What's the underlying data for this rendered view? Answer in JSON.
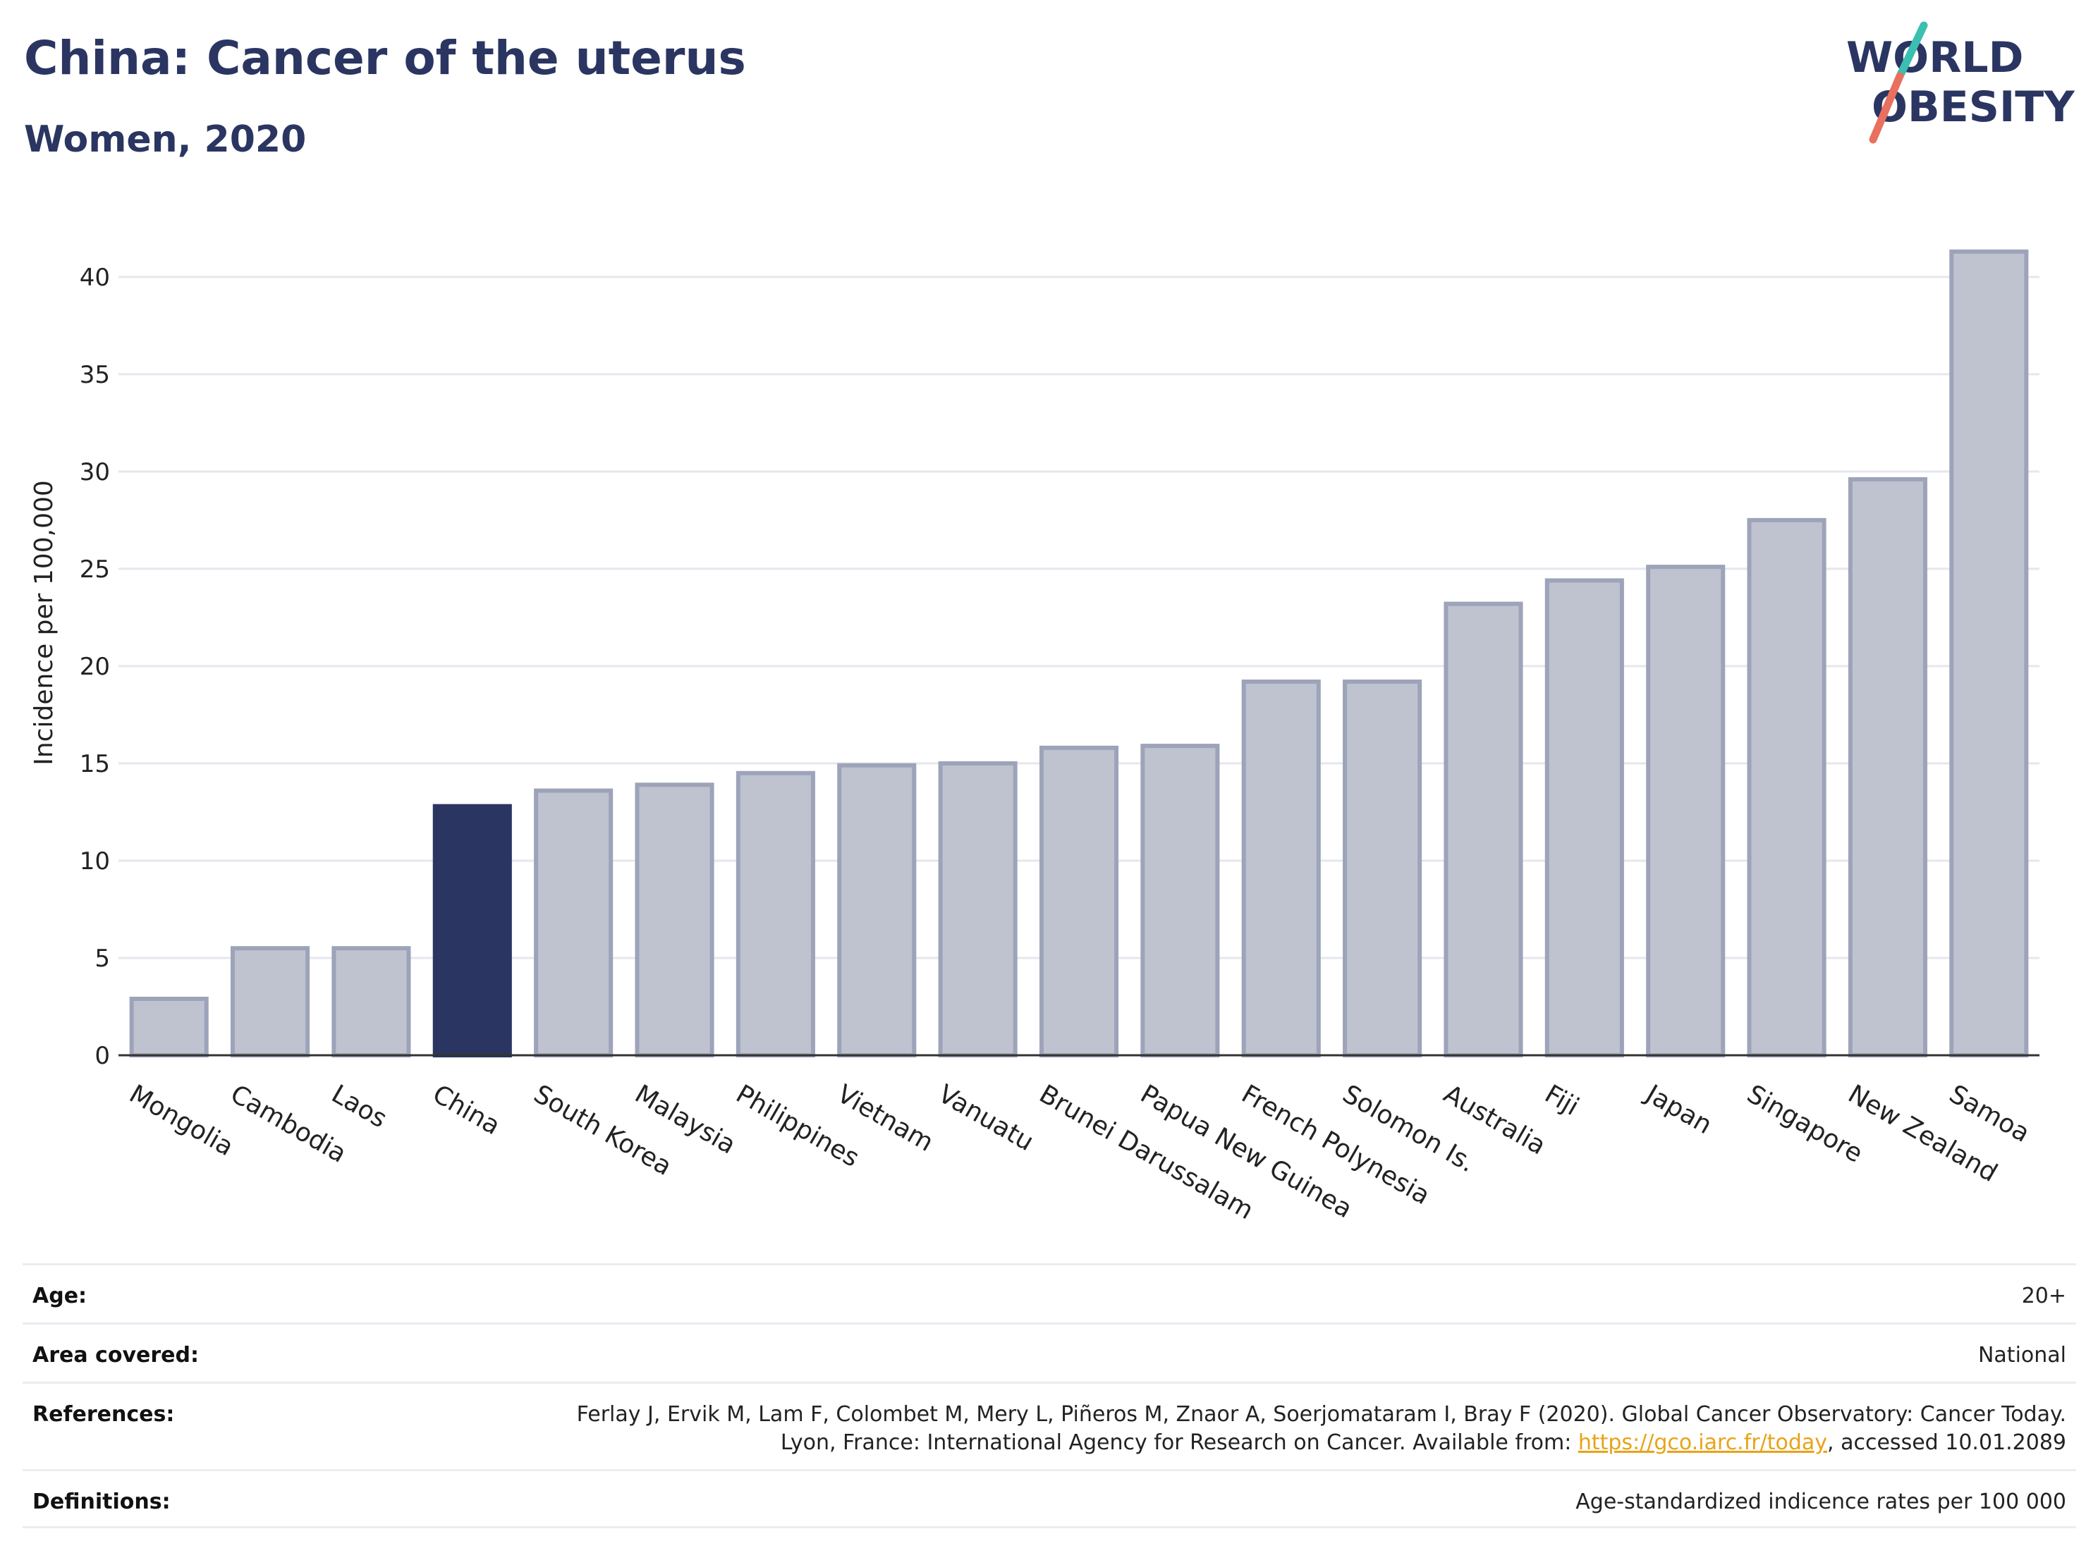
{
  "header": {
    "title": "China: Cancer of the uterus",
    "subtitle": "Women, 2020"
  },
  "logo": {
    "line1": "WORLD",
    "line2": "OBESITY",
    "brand_color": "#2b3561",
    "slash_colors": [
      "#3bbfb0",
      "#e8705e"
    ]
  },
  "chart_data": {
    "type": "bar",
    "categories": [
      "Mongolia",
      "Cambodia",
      "Laos",
      "China",
      "South Korea",
      "Malaysia",
      "Philippines",
      "Vietnam",
      "Vanuatu",
      "Brunei Darussalam",
      "Papua New Guinea",
      "French Polynesia",
      "Solomon Is.",
      "Australia",
      "Fiji",
      "Japan",
      "Singapore",
      "New Zealand",
      "Samoa"
    ],
    "values": [
      2.9,
      5.5,
      5.5,
      12.8,
      13.6,
      13.9,
      14.5,
      14.9,
      15.0,
      15.8,
      15.9,
      19.2,
      19.2,
      23.2,
      24.4,
      25.1,
      27.5,
      29.6,
      41.3
    ],
    "highlight": "China",
    "xlabel": "",
    "ylabel": "Incidence per 100,000",
    "ylim": [
      0,
      43
    ],
    "yticks": [
      0,
      5,
      10,
      15,
      20,
      25,
      30,
      35,
      40
    ],
    "grid": true,
    "colors": {
      "bar": "#bfc3d0",
      "bar_border": "#9da3b9",
      "highlight": "#2b3561",
      "grid": "#e6e7ee",
      "axis": "#333333"
    }
  },
  "info": {
    "age_label": "Age:",
    "age_value": "20+",
    "area_label": "Area covered:",
    "area_value": "National",
    "references_label": "References:",
    "references_text": "Ferlay J, Ervik M, Lam F, Colombet M, Mery L, Piñeros M, Znaor A, Soerjomataram I, Bray F (2020). Global Cancer Observatory: Cancer Today. Lyon, France: International Agency for Research on Cancer. Available from: ",
    "references_link": "https://gco.iarc.fr/today",
    "references_suffix": ", accessed 10.01.2089",
    "definitions_label": "Definitions:",
    "definitions_value": "Age-standardized indicence rates per 100 000"
  }
}
